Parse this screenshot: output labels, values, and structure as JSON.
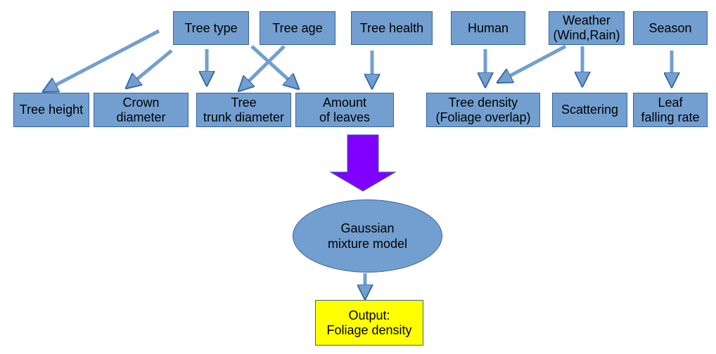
{
  "diagram": {
    "inputs": {
      "tree_type": "Tree type",
      "tree_age": "Tree age",
      "tree_health": "Tree health",
      "human": "Human",
      "weather": "Weather\n(Wind,Rain)",
      "season": "Season"
    },
    "features": {
      "tree_height": "Tree height",
      "crown_diameter": "Crown\ndiameter",
      "trunk_diameter": "Tree\ntrunk diameter",
      "amount_of_leaves": "Amount\nof leaves",
      "tree_density": "Tree density\n(Foliage overlap)",
      "scattering": "Scattering",
      "leaf_falling_rate": "Leaf\nfalling rate"
    },
    "model": "Gaussian\nmixture model",
    "output": "Output:\nFoliage density"
  },
  "colors": {
    "node_fill": "#729fcf",
    "node_border": "#3465a4",
    "output_fill": "#ffff00",
    "big_arrow": "#7f00ff"
  }
}
